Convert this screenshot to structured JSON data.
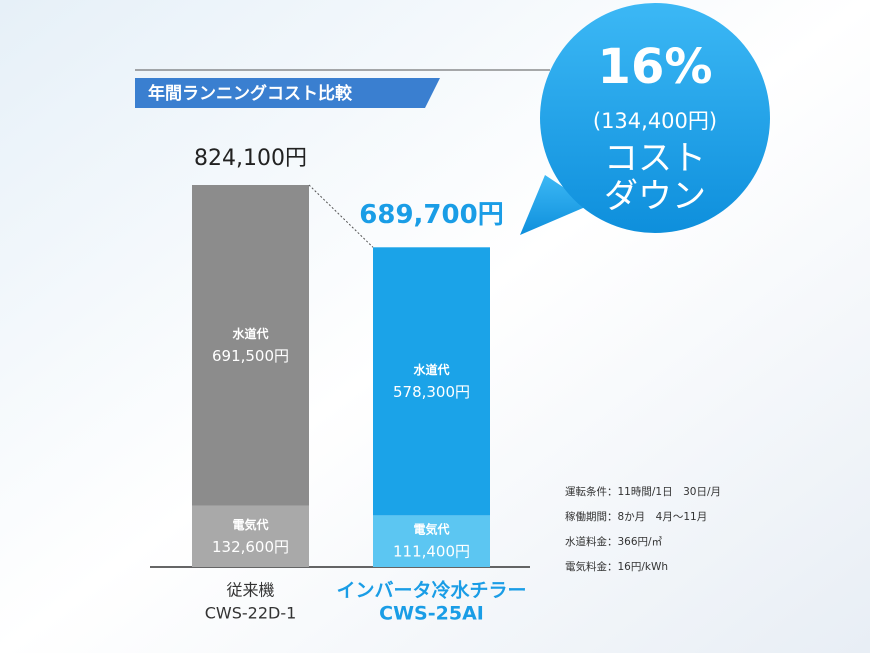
{
  "chart_data": {
    "type": "stacked_bar",
    "title": "年間ランニングコスト比較",
    "categories": [
      "従来機",
      "インバータ冷水チラー"
    ],
    "models": [
      "CWS-22D-1",
      "CWS-25AI"
    ],
    "series": [
      {
        "name": "電気代",
        "colors": [
          "#a9a9a9",
          "#5cc6f2"
        ],
        "values": [
          132600,
          111400
        ],
        "value_labels": [
          "132,600円",
          "111,400円"
        ]
      },
      {
        "name": "水道代",
        "colors": [
          "#8c8c8c",
          "#1ba3e8"
        ],
        "values": [
          691500,
          578300
        ],
        "value_labels": [
          "691,500円",
          "578,300円"
        ]
      }
    ],
    "totals": [
      824100,
      689700
    ],
    "total_labels": [
      "824,100円",
      "689,700円"
    ],
    "callout": {
      "percent_label": "16%",
      "amount_label": "(134,400円)",
      "lines": [
        "コスト",
        "ダウン"
      ]
    },
    "conditions": [
      "運転条件：11時間/1日　30日/月",
      "稼働期間：8か月　4月～11月",
      "水道料金：366円/㎥",
      "電気料金：16円/kWh"
    ]
  }
}
